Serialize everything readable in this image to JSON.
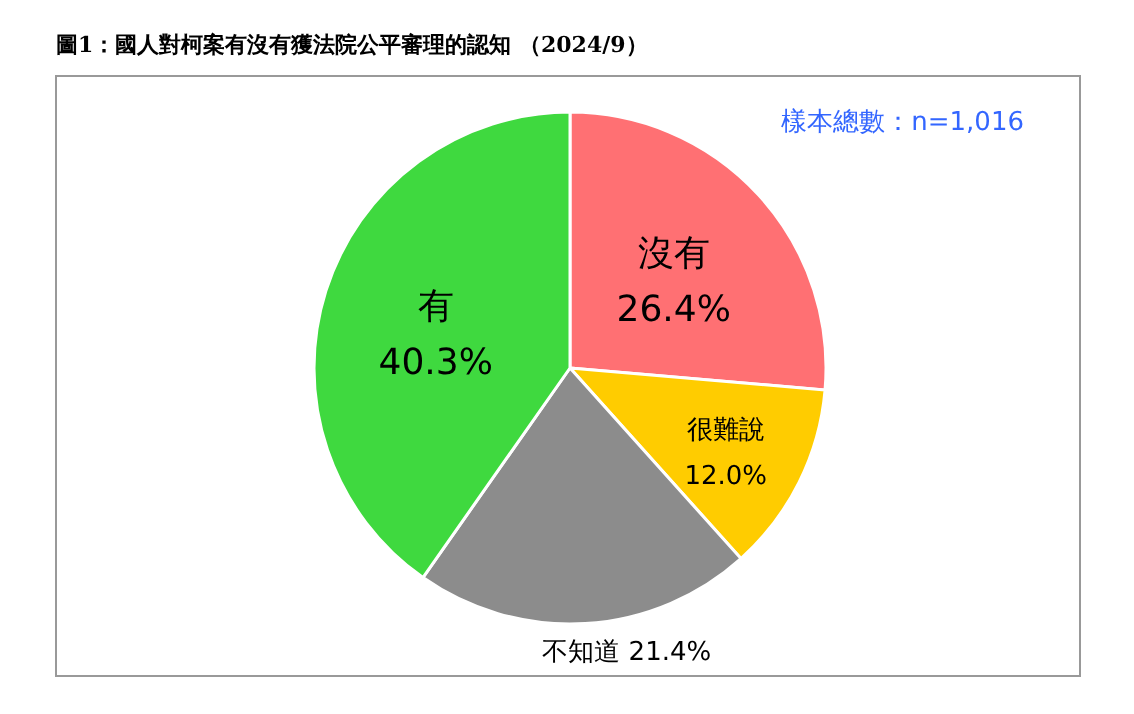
{
  "chart_data": {
    "type": "pie",
    "title": "圖1：國人對柯案有沒有獲法院公平審理的認知 （2024/9）",
    "categories": [
      "沒有",
      "很難說",
      "不知道",
      "有"
    ],
    "values": [
      26.4,
      12.0,
      21.4,
      40.3
    ],
    "value_labels": [
      "26.4%",
      "12.0%",
      "21.4%",
      "40.3%"
    ],
    "colors": [
      "#ff7073",
      "#ffcc00",
      "#8c8c8c",
      "#3fd93f"
    ],
    "annotations": [
      "樣本總數：n=1,016"
    ]
  }
}
